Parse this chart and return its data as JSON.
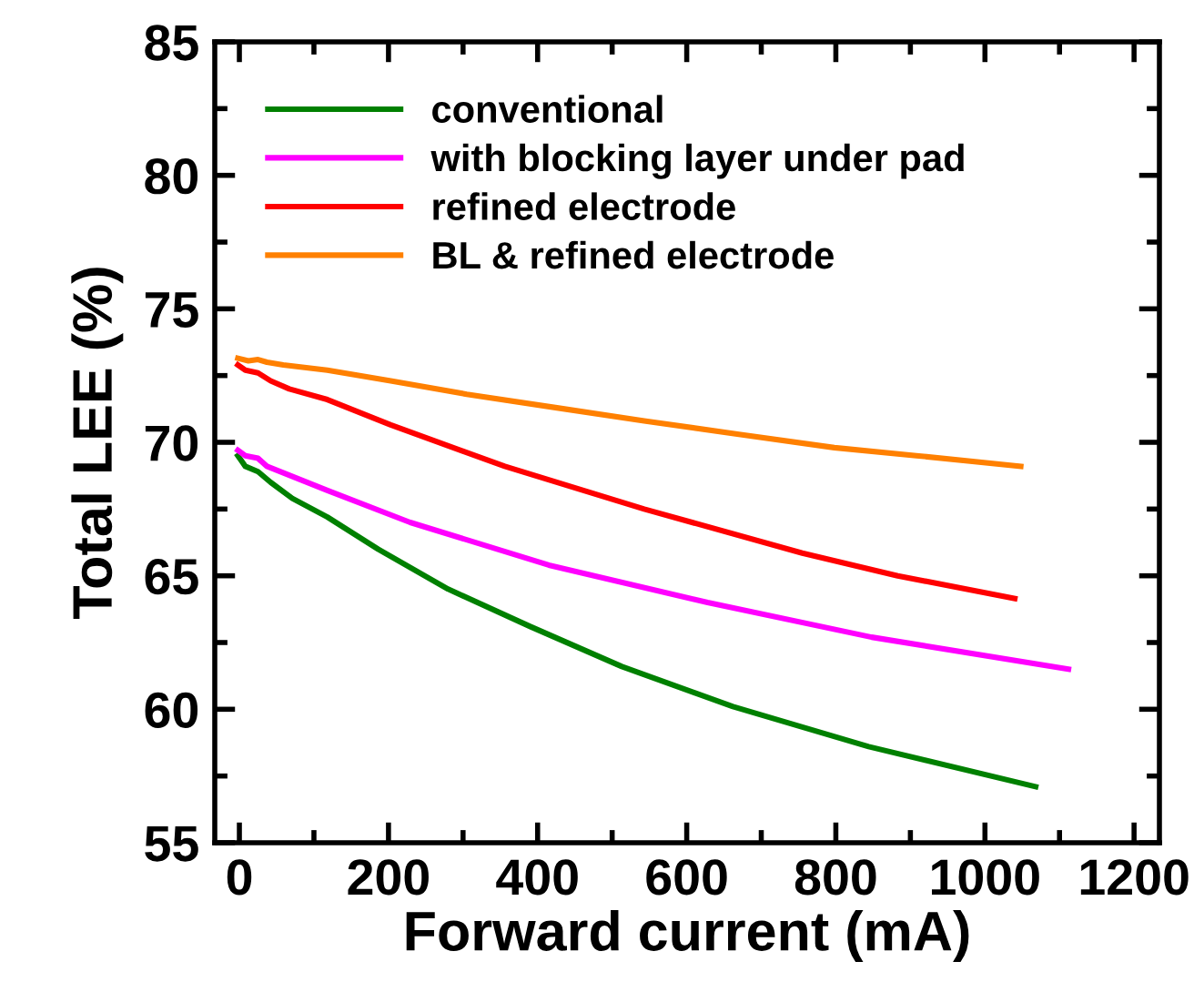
{
  "chart_data": {
    "type": "line",
    "xlabel": "Forward current (mA)",
    "ylabel": "Total LEE (%)",
    "xlim": [
      -33,
      1234
    ],
    "ylim": [
      55,
      85
    ],
    "xticks": [
      0,
      200,
      400,
      600,
      800,
      1000,
      1200
    ],
    "yticks": [
      55,
      60,
      65,
      70,
      75,
      80,
      85
    ],
    "grid": false,
    "legend": "top left",
    "marker": "none",
    "line_style": "solid",
    "series": [
      {
        "name": "conventional",
        "color": "#008000",
        "x": [
          -2,
          8,
          25,
          42,
          71,
          118,
          186,
          280,
          390,
          513,
          662,
          844,
          1068
        ],
        "values": [
          69.5,
          69.1,
          68.9,
          68.5,
          67.9,
          67.2,
          66.0,
          64.5,
          63.1,
          61.6,
          60.1,
          58.6,
          57.1
        ]
      },
      {
        "name": "with blocking layer under pad",
        "color": "#ff00ff",
        "x": [
          -2,
          8,
          25,
          37,
          118,
          229,
          415,
          628,
          848,
          1112
        ],
        "values": [
          69.7,
          69.5,
          69.4,
          69.1,
          68.2,
          67.0,
          65.4,
          64.0,
          62.7,
          61.5
        ]
      },
      {
        "name": "refined electrode",
        "color": "#ff0000",
        "x": [
          -2,
          8,
          25,
          42,
          67,
          118,
          203,
          356,
          543,
          755,
          883,
          1040
        ],
        "values": [
          72.9,
          72.7,
          72.6,
          72.3,
          72.0,
          71.6,
          70.65,
          69.1,
          67.5,
          65.85,
          65.0,
          64.15
        ]
      },
      {
        "name": "BL & refined electrode",
        "color": "#ff8000",
        "x": [
          -2,
          12,
          25,
          37,
          59,
          118,
          203,
          305,
          424,
          543,
          670,
          798,
          908,
          1048
        ],
        "values": [
          73.15,
          73.05,
          73.1,
          73.0,
          72.9,
          72.7,
          72.3,
          71.8,
          71.3,
          70.8,
          70.3,
          69.8,
          69.5,
          69.1
        ]
      }
    ]
  }
}
